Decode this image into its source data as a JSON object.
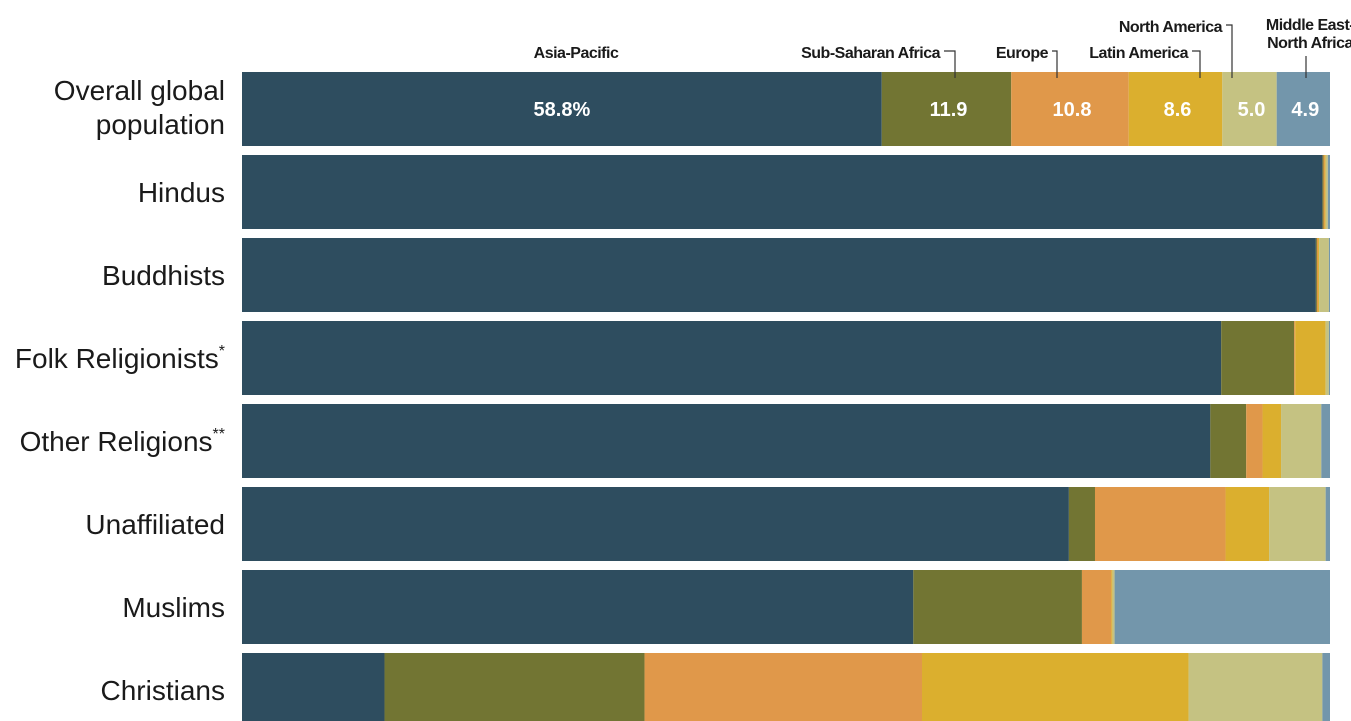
{
  "chart_data": {
    "type": "bar",
    "orientation": "horizontal",
    "stacked": true,
    "title": "",
    "xlabel": "",
    "ylabel": "",
    "xlim": [
      0,
      100
    ],
    "grid": false,
    "categories": [
      "Overall global population",
      "Hindus",
      "Buddhists",
      "Folk Religionists*",
      "Other Religions**",
      "Unaffiliated",
      "Muslims",
      "Christians"
    ],
    "series": [
      {
        "name": "Asia-Pacific",
        "color": "#2e4d5f",
        "values": [
          58.8,
          99.3,
          98.7,
          90.0,
          89.0,
          76.0,
          61.7,
          13.1
        ]
      },
      {
        "name": "Sub-Saharan Africa",
        "color": "#727533",
        "values": [
          11.9,
          0.1,
          0.1,
          6.7,
          3.3,
          2.4,
          15.5,
          23.9
        ]
      },
      {
        "name": "Europe",
        "color": "#e0984a",
        "values": [
          10.8,
          0.1,
          0.1,
          0.1,
          1.5,
          12.0,
          2.7,
          25.5
        ]
      },
      {
        "name": "Latin America",
        "color": "#dbaf2e",
        "values": [
          8.6,
          0.1,
          0.1,
          2.8,
          1.7,
          4.0,
          0.1,
          24.5
        ]
      },
      {
        "name": "North America",
        "color": "#c5c282",
        "values": [
          5.0,
          0.2,
          0.9,
          0.3,
          3.7,
          5.2,
          0.2,
          12.3
        ]
      },
      {
        "name": "Middle East-North Africa",
        "color": "#7396ab",
        "values": [
          4.9,
          0.2,
          0.1,
          0.1,
          0.8,
          0.4,
          19.8,
          0.7
        ]
      }
    ],
    "data_labels": [
      "58.8%",
      "11.9",
      "10.8",
      "8.6",
      "5.0",
      "4.9"
    ],
    "legend": {
      "placement": "top",
      "labels": [
        [
          "Asia-Pacific"
        ],
        [
          "Sub-Saharan Africa"
        ],
        [
          "Europe"
        ],
        [
          "Latin America"
        ],
        [
          "North America"
        ],
        [
          "Middle East-",
          "North Africa"
        ]
      ]
    },
    "row_labels": [
      [
        "Overall global",
        "population"
      ],
      [
        "Hindus"
      ],
      [
        "Buddhists"
      ],
      [
        "Folk Religionists",
        "*"
      ],
      [
        "Other Religions",
        "**"
      ],
      [
        "Unaffiliated"
      ],
      [
        "Muslims"
      ],
      [
        "Christians"
      ]
    ]
  }
}
